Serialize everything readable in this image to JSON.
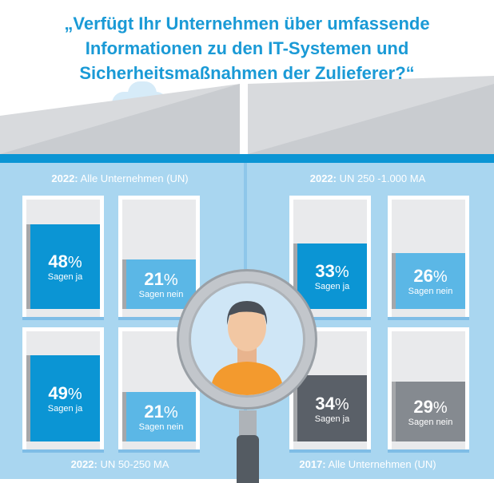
{
  "title": [
    "„Verfügt Ihr Unternehmen über umfassende",
    "Informationen zu den IT-Systemen und",
    "Sicherheitsmaßnahmen der Zulieferer?“"
  ],
  "groups": [
    {
      "year": "2022:",
      "label": " Alle Unternehmen (UN)",
      "ja": 48,
      "nein": 21,
      "ja_text": "48",
      "nein_text": "21",
      "ja_color": "#0b95d4",
      "nein_color": "#5bb7e6"
    },
    {
      "year": "2022:",
      "label": " UN 250 -1.000 MA",
      "ja": 33,
      "nein": 26,
      "ja_text": "33",
      "nein_text": "26",
      "ja_color": "#0b95d4",
      "nein_color": "#5bb7e6"
    },
    {
      "year": "2022:",
      "label": " UN 50-250 MA",
      "ja": 49,
      "nein": 21,
      "ja_text": "49",
      "nein_text": "21",
      "ja_color": "#0b95d4",
      "nein_color": "#5bb7e6"
    },
    {
      "year": "2017:",
      "label": " Alle Unternehmen (UN)",
      "ja": 34,
      "nein": 29,
      "ja_text": "34",
      "nein_text": "29",
      "ja_color": "#5a6068",
      "nein_color": "#858a90"
    }
  ],
  "pct_sign": "%",
  "ja_label": "Sagen ja",
  "nein_label": "Sagen nein"
}
